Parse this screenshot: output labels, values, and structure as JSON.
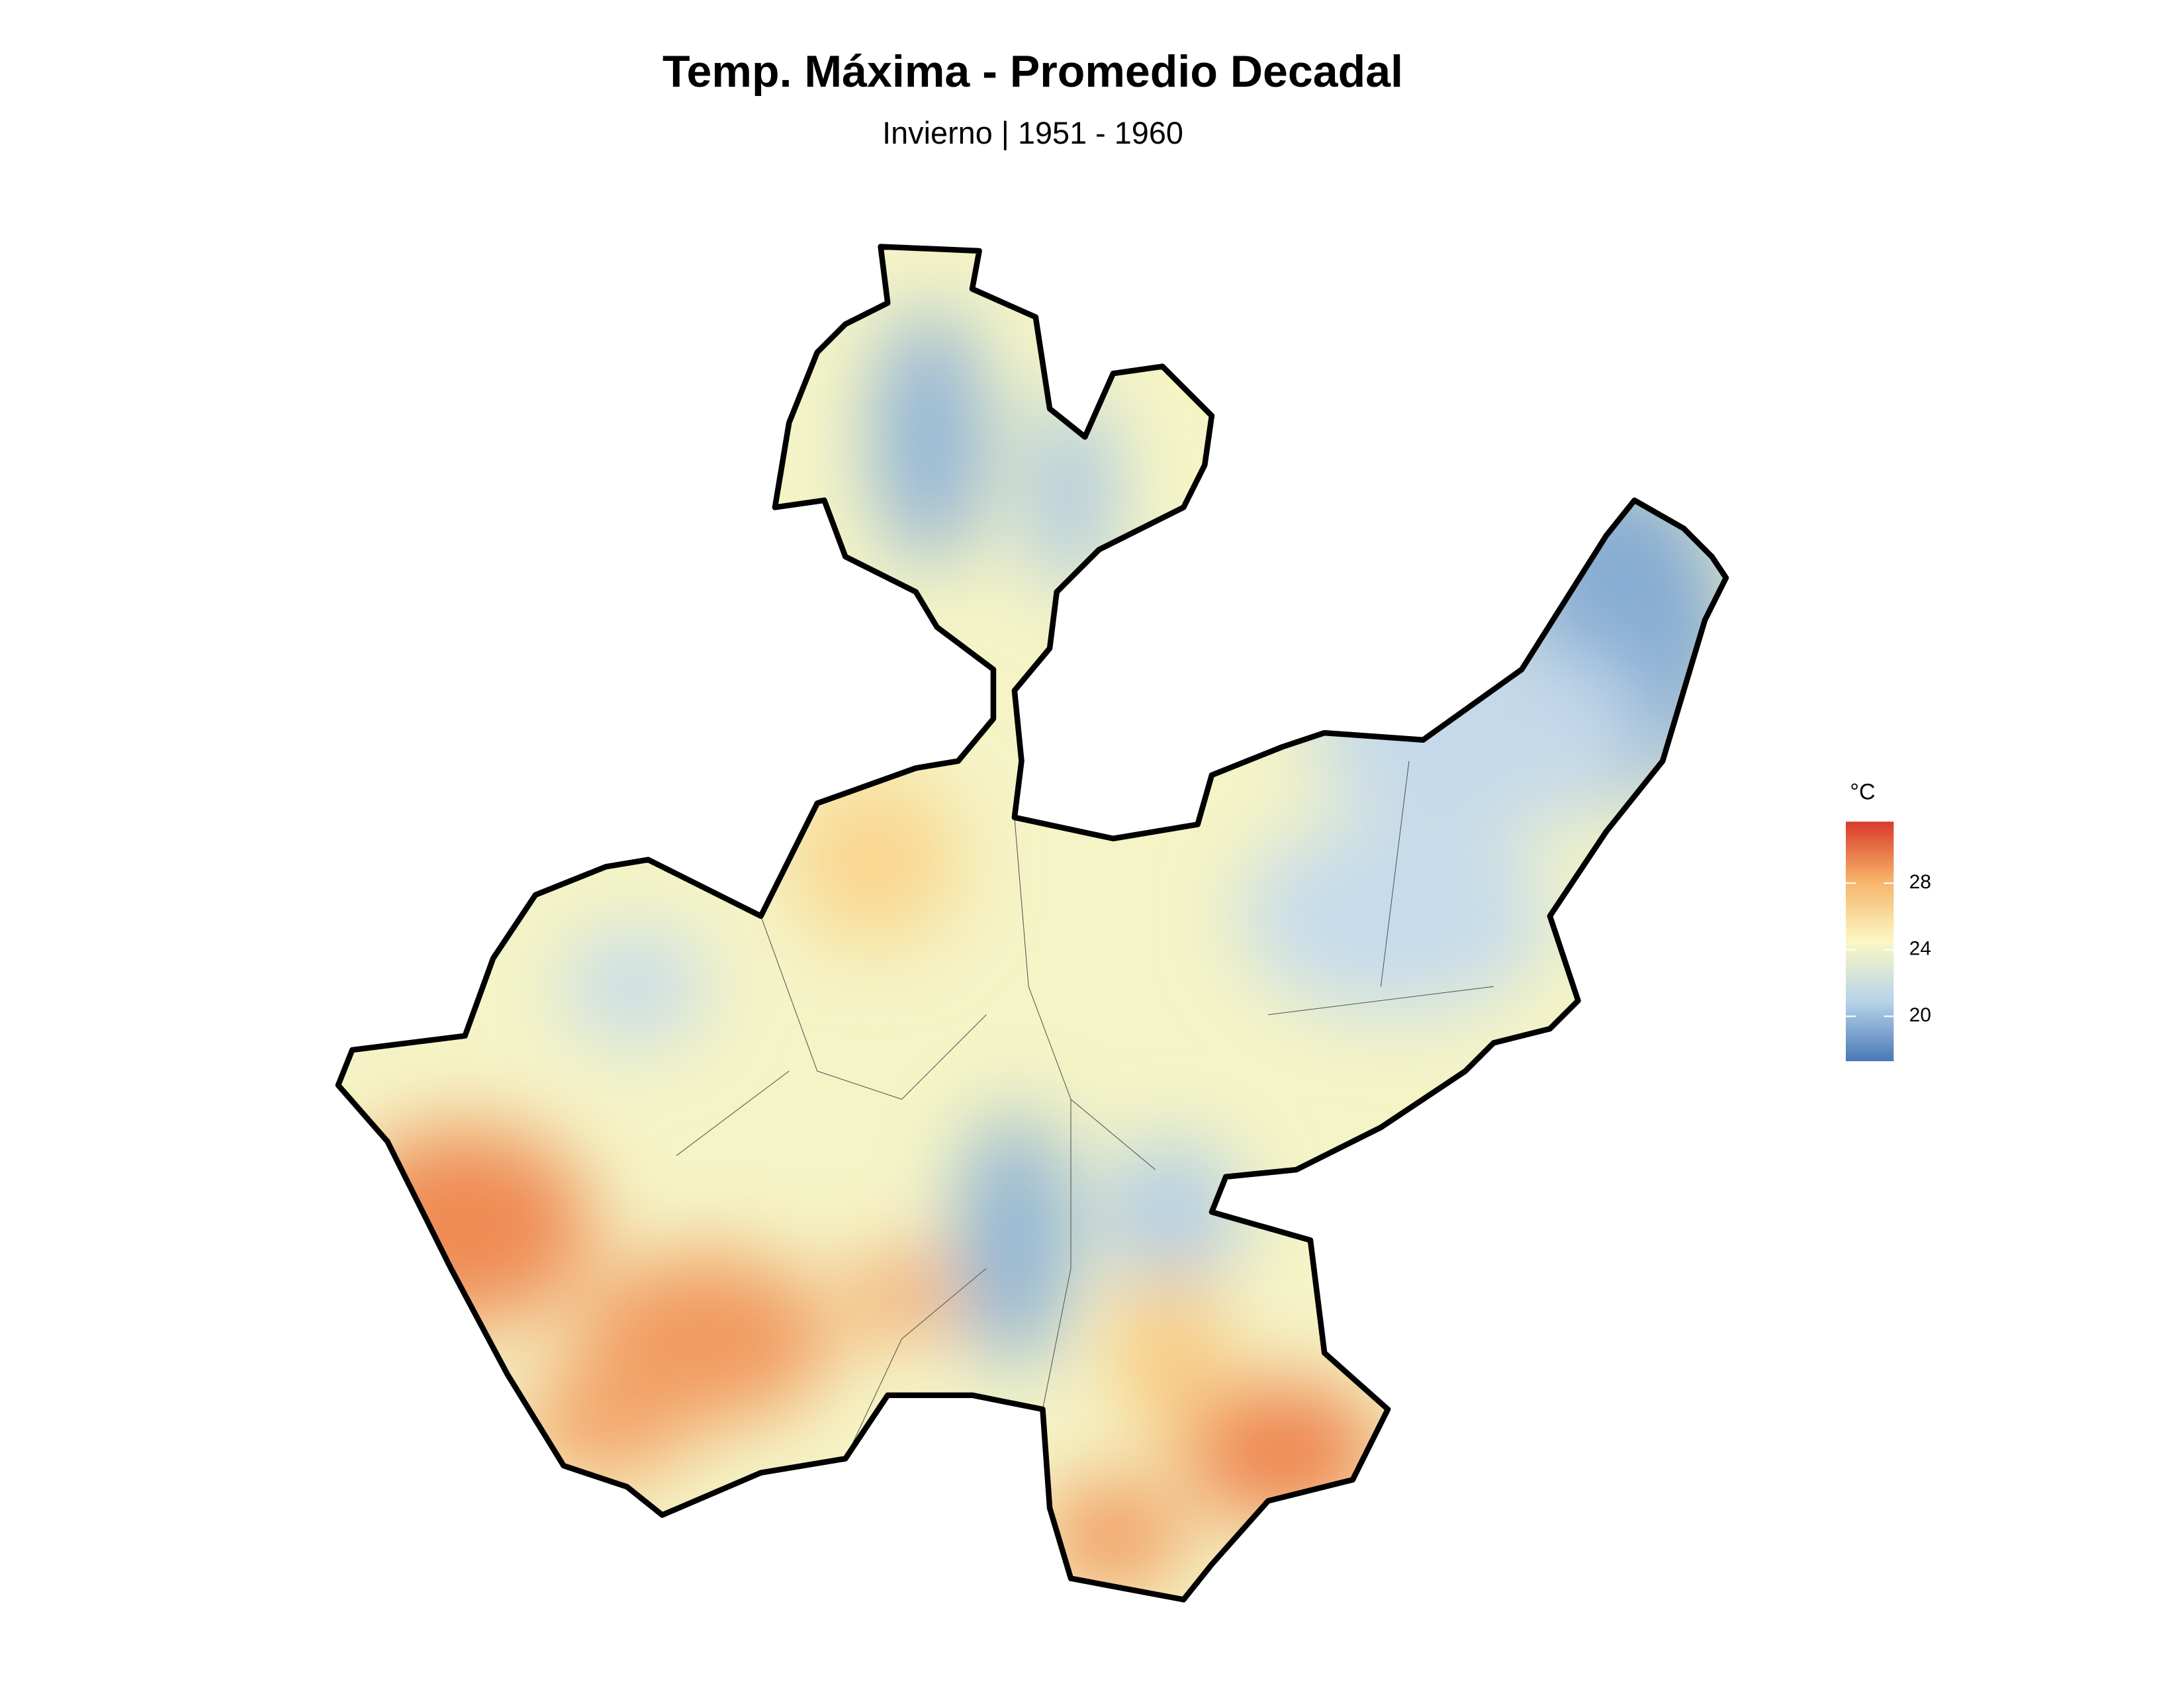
{
  "title": "Temp. Máxima - Promedio Decadal",
  "subtitle": "Invierno | 1951 - 1960",
  "legend": {
    "title": "°C",
    "lim": [
      17.3,
      31.7
    ],
    "ticks": [
      20,
      24,
      28
    ],
    "colors": [
      "#4a78b6",
      "#b7d3e8",
      "#fbf8c4",
      "#f7b46a",
      "#d93a2b"
    ]
  }
}
